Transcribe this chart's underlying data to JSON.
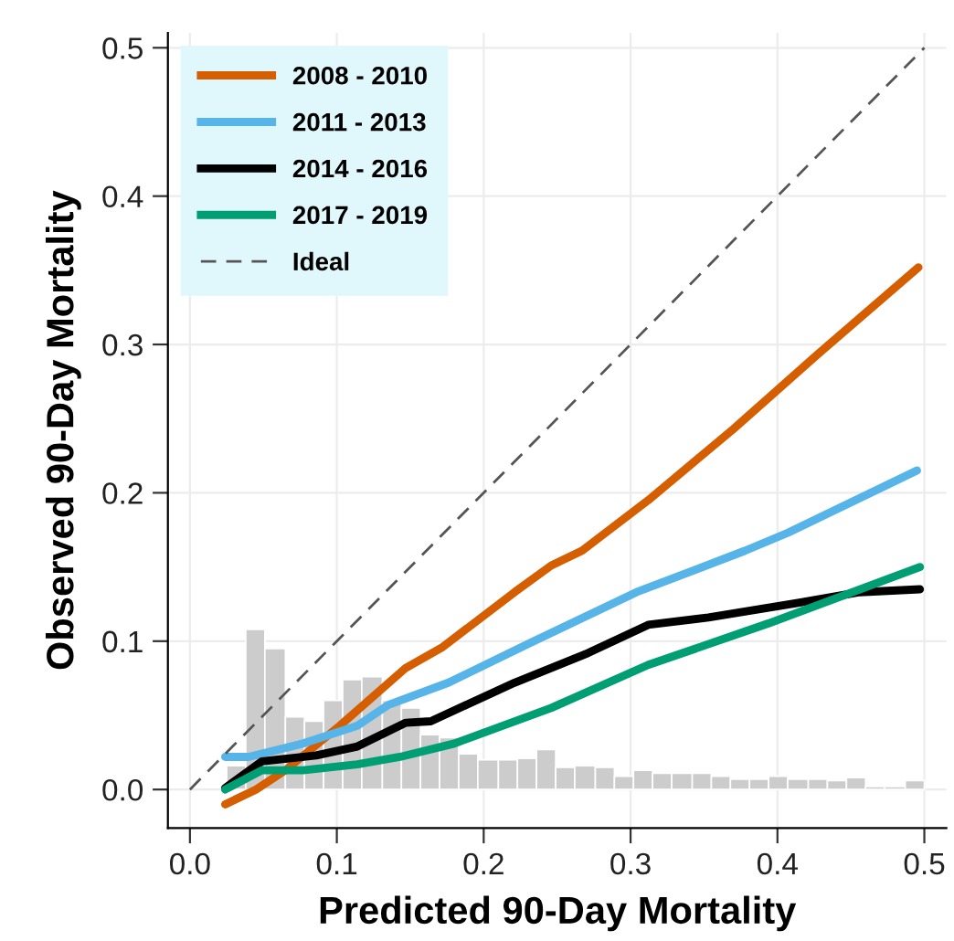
{
  "chart_data": {
    "type": "line",
    "xlabel": "Predicted 90-Day Mortality",
    "ylabel": "Observed 90-Day Mortality",
    "xlim": [
      -0.015,
      0.515
    ],
    "ylim": [
      -0.026,
      0.51
    ],
    "xticks": [
      {
        "value": 0,
        "label": "0.0"
      },
      0.1,
      0.2,
      0.3,
      0.4,
      0.5
    ],
    "yticks": [
      {
        "value": 0,
        "label": "0.0"
      },
      0.1,
      0.2,
      0.3,
      0.4,
      0.5
    ],
    "grid": true,
    "legend": "top left",
    "series": [
      {
        "type": "histogram",
        "color": "#cccccc",
        "bins": [
          0.025,
          0.038,
          0.051,
          0.065,
          0.078,
          0.091,
          0.104,
          0.117,
          0.131,
          0.144,
          0.157,
          0.17,
          0.183,
          0.196,
          0.21,
          0.223,
          0.236,
          0.249,
          0.262,
          0.276,
          0.289,
          0.302,
          0.315,
          0.328,
          0.342,
          0.355,
          0.368,
          0.381,
          0.394,
          0.407,
          0.421,
          0.434,
          0.447,
          0.46,
          0.473,
          0.487,
          0.5
        ],
        "values": [
          0.016,
          0.108,
          0.095,
          0.049,
          0.046,
          0.06,
          0.074,
          0.076,
          0.06,
          0.055,
          0.037,
          0.035,
          0.024,
          0.02,
          0.02,
          0.021,
          0.027,
          0.015,
          0.016,
          0.015,
          0.009,
          0.013,
          0.011,
          0.011,
          0.011,
          0.009,
          0.007,
          0.007,
          0.009,
          0.007,
          0.007,
          0.006,
          0.008,
          0.002,
          0.002,
          0.006
        ]
      },
      {
        "name": "2008 - 2010",
        "color": "#d55e00",
        "x": [
          0.024,
          0.045,
          0.065,
          0.102,
          0.147,
          0.172,
          0.221,
          0.246,
          0.267,
          0.312,
          0.37,
          0.427,
          0.496
        ],
        "values": [
          -0.01,
          0.0,
          0.013,
          0.043,
          0.082,
          0.096,
          0.133,
          0.151,
          0.161,
          0.195,
          0.243,
          0.293,
          0.352
        ]
      },
      {
        "name": "2011 - 2013",
        "color": "#56b4e9",
        "x": [
          0.024,
          0.04,
          0.077,
          0.114,
          0.135,
          0.176,
          0.23,
          0.304,
          0.378,
          0.407,
          0.495
        ],
        "values": [
          0.022,
          0.022,
          0.031,
          0.043,
          0.057,
          0.072,
          0.098,
          0.133,
          0.161,
          0.173,
          0.215
        ]
      },
      {
        "name": "2014 - 2016",
        "color": "#000000",
        "x": [
          0.024,
          0.049,
          0.086,
          0.114,
          0.147,
          0.164,
          0.221,
          0.271,
          0.312,
          0.353,
          0.415,
          0.456,
          0.497
        ],
        "values": [
          0.001,
          0.019,
          0.023,
          0.029,
          0.045,
          0.046,
          0.072,
          0.092,
          0.111,
          0.116,
          0.126,
          0.133,
          0.135
        ]
      },
      {
        "name": "2017 - 2019",
        "color": "#009e73",
        "x": [
          0.024,
          0.049,
          0.077,
          0.114,
          0.143,
          0.18,
          0.246,
          0.312,
          0.394,
          0.497
        ],
        "values": [
          0.0,
          0.013,
          0.013,
          0.017,
          0.022,
          0.031,
          0.055,
          0.084,
          0.112,
          0.15
        ]
      },
      {
        "name": "Ideal",
        "color": "#555555",
        "line_style": "dashed",
        "x": [
          0,
          0.5
        ],
        "values": [
          0,
          0.5
        ]
      }
    ]
  }
}
